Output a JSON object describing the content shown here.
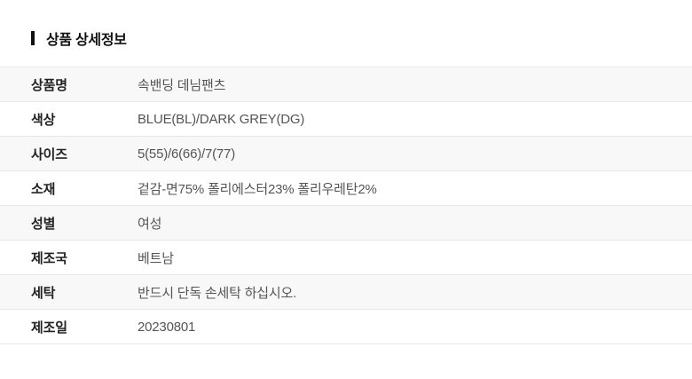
{
  "section": {
    "title": "상품 상세정보"
  },
  "table": {
    "rows": [
      {
        "label": "상품명",
        "value": "속밴딩 데님팬츠"
      },
      {
        "label": "색상",
        "value": "BLUE(BL)/DARK GREY(DG)"
      },
      {
        "label": "사이즈",
        "value": "5(55)/6(66)/7(77)"
      },
      {
        "label": "소재",
        "value": "겉감-면75% 폴리에스터23% 폴리우레탄2%"
      },
      {
        "label": "성별",
        "value": "여성"
      },
      {
        "label": "제조국",
        "value": "베트남"
      },
      {
        "label": "세탁",
        "value": "반드시 단독 손세탁 하십시오."
      },
      {
        "label": "제조일",
        "value": "20230801"
      }
    ]
  },
  "colors": {
    "accent_bar": "#111111",
    "title_text": "#111111",
    "label_text": "#222222",
    "value_text": "#555555",
    "divider": "#e7e7e7",
    "alt_row_background": "#f8f8f8",
    "page_background": "#ffffff"
  }
}
